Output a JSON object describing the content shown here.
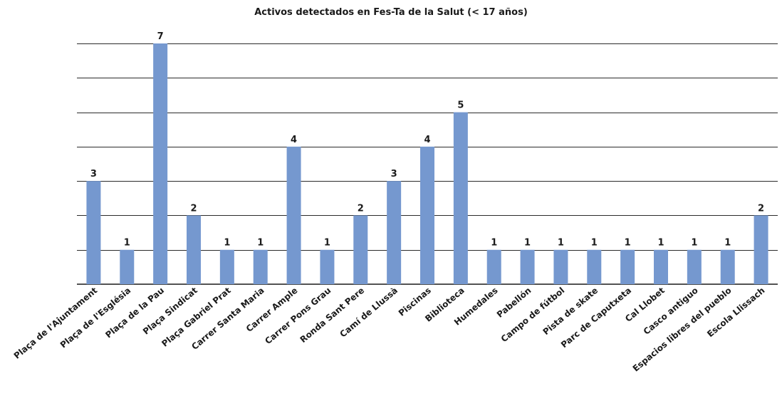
{
  "chart_data": {
    "type": "bar",
    "title": "Activos detectados en Fes-Ta de la Salut (< 17 años)",
    "xlabel": "",
    "ylabel": "",
    "categories": [
      "Plaça de l'Ajuntament",
      "Plaça de l'Església",
      "Plaça de la Pau",
      "Plaça Sindicat",
      "Plaça Gabriel Prat",
      "Carrer Santa Maria",
      "Carrer Ample",
      "Carrer Pons Grau",
      "Ronda Sant Pere",
      "Camí de Llussà",
      "Piscinas",
      "Biblioteca",
      "Humedales",
      "Pabellón",
      "Campo de fútbol",
      "Pista de skate",
      "Parc de Caputxeta",
      "Cal Llobet",
      "Casco antiguo",
      "Espacios libres del pueblo",
      "Escola Llissach"
    ],
    "values": [
      3,
      1,
      7,
      2,
      1,
      1,
      4,
      1,
      2,
      3,
      4,
      5,
      1,
      1,
      1,
      1,
      1,
      1,
      1,
      1,
      2
    ],
    "ylim": [
      0,
      7
    ],
    "grid": true,
    "legend": "none",
    "show_data_labels": true,
    "bar_color": "#7598cf"
  }
}
